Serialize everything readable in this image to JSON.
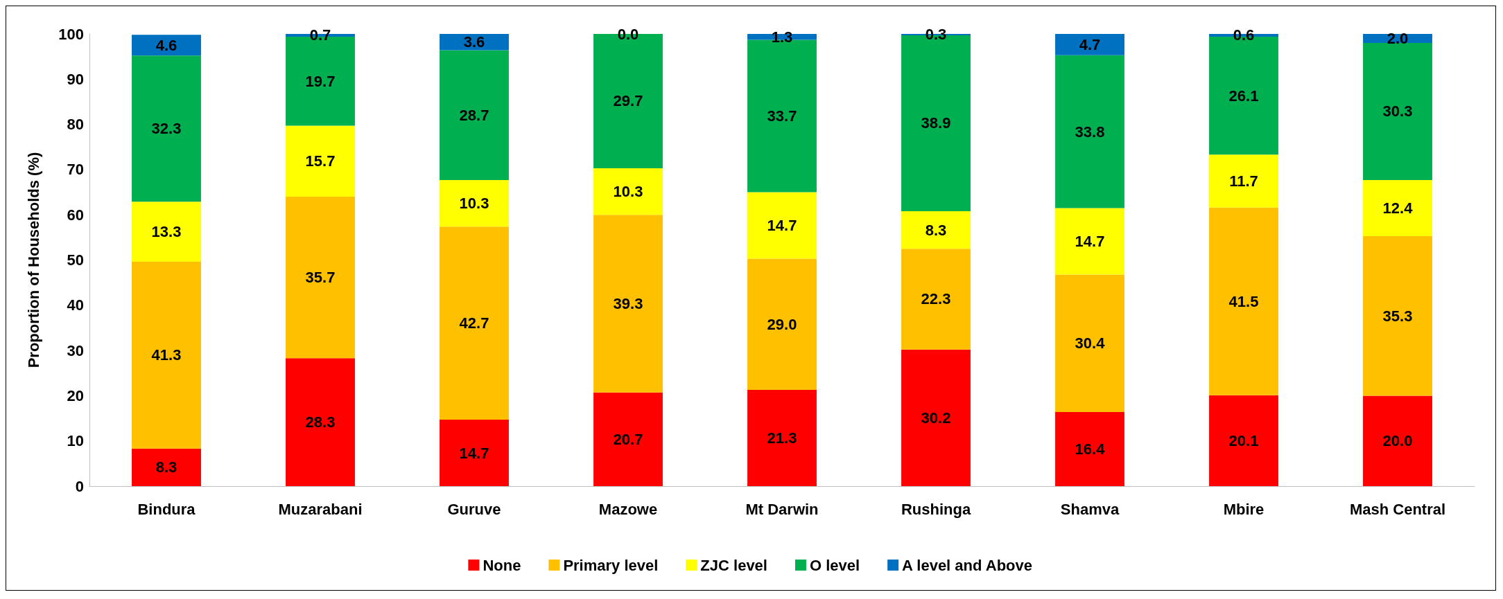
{
  "chart_data": {
    "type": "bar",
    "stacked": true,
    "ylabel": "Proportion of Households (%)",
    "categories": [
      "Bindura",
      "Muzarabani",
      "Guruve",
      "Mazowe",
      "Mt Darwin",
      "Rushinga",
      "Shamva",
      "Mbire",
      "Mash Central"
    ],
    "series": [
      {
        "name": "None",
        "color": "#ff0000",
        "values": [
          8.3,
          28.3,
          14.7,
          20.7,
          21.3,
          30.2,
          16.4,
          20.1,
          20.0
        ],
        "value_labels": [
          "8.3",
          "28.3",
          "14.7",
          "20.7",
          "21.3",
          "30.2",
          "16.4",
          "20.1",
          "20.0"
        ]
      },
      {
        "name": "Primary level",
        "color": "#ffc000",
        "values": [
          41.3,
          35.7,
          42.7,
          39.3,
          29.0,
          22.3,
          30.4,
          41.5,
          35.3
        ],
        "value_labels": [
          "41.3",
          "35.7",
          "42.7",
          "39.3",
          "29.0",
          "22.3",
          "30.4",
          "41.5",
          "35.3"
        ]
      },
      {
        "name": "ZJC level",
        "color": "#ffff00",
        "values": [
          13.3,
          15.7,
          10.3,
          10.3,
          14.7,
          8.3,
          14.7,
          11.7,
          12.4
        ],
        "value_labels": [
          "13.3",
          "15.7",
          "10.3",
          "10.3",
          "14.7",
          "8.3",
          "14.7",
          "11.7",
          "12.4"
        ]
      },
      {
        "name": "O level",
        "color": "#00b050",
        "values": [
          32.3,
          19.7,
          28.7,
          29.7,
          33.7,
          38.9,
          33.8,
          26.1,
          30.3
        ],
        "value_labels": [
          "32.3",
          "19.7",
          "28.7",
          "29.7",
          "33.7",
          "38.9",
          "33.8",
          "26.1",
          "30.3"
        ]
      },
      {
        "name": "A level and Above",
        "color": "#0070c0",
        "values": [
          4.6,
          0.7,
          3.6,
          0.0,
          1.3,
          0.3,
          4.7,
          0.6,
          2.0
        ],
        "value_labels": [
          "4.6",
          "0.7",
          "3.6",
          "0.0",
          "1.3",
          "0.3",
          "4.7",
          "0.6",
          "2.0"
        ]
      }
    ],
    "ylim": [
      0,
      100
    ],
    "yticks": [
      0,
      10,
      20,
      30,
      40,
      50,
      60,
      70,
      80,
      90,
      100
    ],
    "grid": false,
    "legend": "bottom"
  }
}
